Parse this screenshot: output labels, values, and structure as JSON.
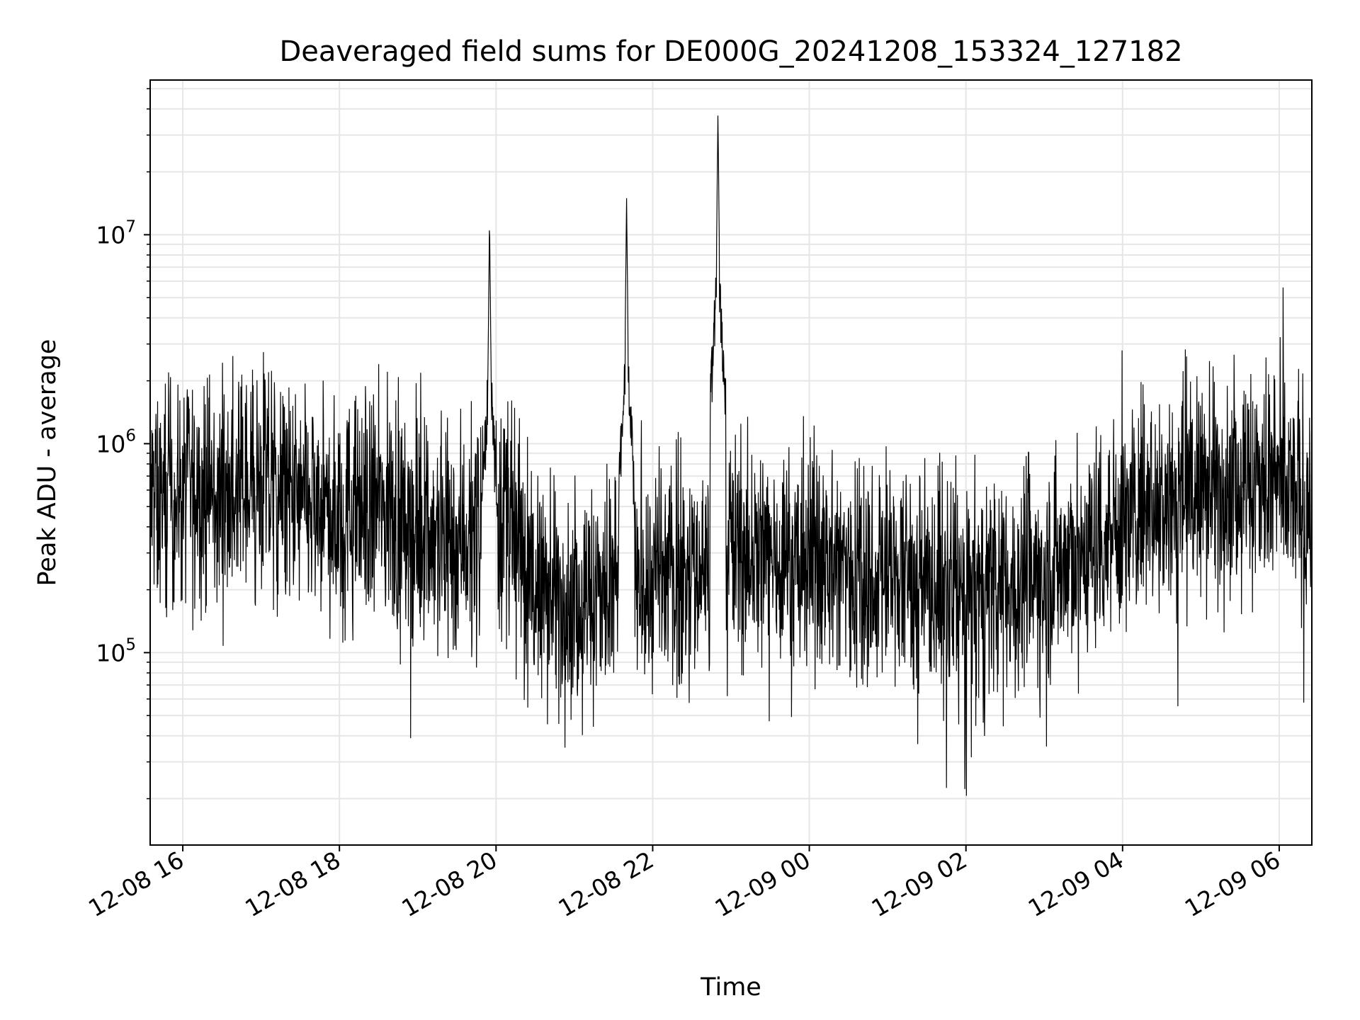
{
  "chart_data": {
    "type": "line",
    "title": "Deaveraged field sums for DE000G_20241208_153324_127182",
    "xlabel": "Time",
    "ylabel": "Peak ADU - average",
    "x_scale": "time",
    "y_scale": "log",
    "xlim": [
      "2024-12-08 15:35",
      "2024-12-09 06:25"
    ],
    "ylim": [
      12000,
      55000000
    ],
    "x_ticks": [
      "12-08 16",
      "12-08 18",
      "12-08 20",
      "12-08 22",
      "12-09 00",
      "12-09 02",
      "12-09 04",
      "12-09 06"
    ],
    "x_tick_times": [
      "2024-12-08 16:00",
      "2024-12-08 18:00",
      "2024-12-08 20:00",
      "2024-12-08 22:00",
      "2024-12-09 00:00",
      "2024-12-09 02:00",
      "2024-12-09 04:00",
      "2024-12-09 06:00"
    ],
    "y_ticks": [
      {
        "base": "10",
        "exp": "5",
        "value": 100000
      },
      {
        "base": "10",
        "exp": "6",
        "value": 1000000
      },
      {
        "base": "10",
        "exp": "7",
        "value": 10000000
      }
    ],
    "grid": true,
    "line_color": "#000000",
    "grid_color": "#e6e6e6",
    "series": [
      {
        "x": [
          "2024-12-08 15:35",
          "2024-12-08 16:00",
          "2024-12-08 16:30",
          "2024-12-08 17:00",
          "2024-12-08 17:30",
          "2024-12-08 18:00",
          "2024-12-08 18:30",
          "2024-12-08 19:00",
          "2024-12-08 19:30",
          "2024-12-08 19:55",
          "2024-12-08 20:00",
          "2024-12-08 20:30",
          "2024-12-08 21:00",
          "2024-12-08 21:40",
          "2024-12-08 22:00",
          "2024-12-08 22:30",
          "2024-12-08 22:50",
          "2024-12-08 23:00",
          "2024-12-08 23:30",
          "2024-12-09 00:00",
          "2024-12-09 00:30",
          "2024-12-09 01:00",
          "2024-12-09 01:30",
          "2024-12-09 02:00",
          "2024-12-09 02:30",
          "2024-12-09 03:00",
          "2024-12-09 03:30",
          "2024-12-09 04:00",
          "2024-12-09 04:30",
          "2024-12-09 05:00",
          "2024-12-09 05:30",
          "2024-12-09 06:00",
          "2024-12-09 06:25"
        ],
        "y": [
          500000,
          600000,
          550000,
          650000,
          500000,
          450000,
          500000,
          400000,
          350000,
          12000000,
          500000,
          200000,
          180000,
          15000000,
          220000,
          250000,
          38000000,
          280000,
          300000,
          280000,
          260000,
          240000,
          210000,
          180000,
          200000,
          250000,
          300000,
          450000,
          550000,
          600000,
          700000,
          600000,
          500000
        ]
      }
    ]
  }
}
